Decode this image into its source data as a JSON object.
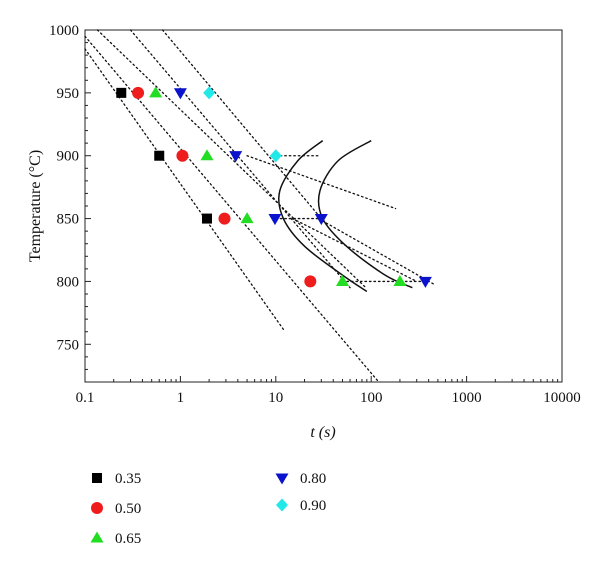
{
  "chart_data": {
    "type": "scatter",
    "title": "",
    "xlabel": "t (s)",
    "ylabel": "Temperature (°C)",
    "xscale": "log",
    "xlim": [
      0.1,
      10000
    ],
    "ylim": [
      720,
      1000
    ],
    "xticks": [
      0.1,
      1,
      10,
      100,
      1000,
      10000
    ],
    "xtick_labels": [
      "0.1",
      "1",
      "10",
      "100",
      "1000",
      "10000"
    ],
    "yticks": [
      750,
      800,
      850,
      900,
      950,
      1000
    ],
    "ytick_labels": [
      "750",
      "800",
      "850",
      "900",
      "950",
      "1000"
    ],
    "grid": false,
    "legend_position": "bottom",
    "series": [
      {
        "name": "0.35",
        "marker": "square",
        "color": "#000000",
        "points": [
          [
            0.24,
            950
          ],
          [
            0.6,
            900
          ],
          [
            1.9,
            850
          ]
        ]
      },
      {
        "name": "0.50",
        "marker": "circle",
        "color": "#ee1c1c",
        "points": [
          [
            0.36,
            950
          ],
          [
            1.05,
            900
          ],
          [
            2.9,
            850
          ],
          [
            23,
            800
          ]
        ]
      },
      {
        "name": "0.65",
        "marker": "triangle-up",
        "color": "#22dd22",
        "points": [
          [
            0.55,
            950
          ],
          [
            1.9,
            900
          ],
          [
            5.0,
            850
          ],
          [
            50,
            800
          ],
          [
            200,
            800
          ]
        ]
      },
      {
        "name": "0.80",
        "marker": "triangle-down",
        "color": "#0b14cc",
        "points": [
          [
            1.0,
            950
          ],
          [
            3.8,
            900
          ],
          [
            9.8,
            850
          ],
          [
            30,
            850
          ],
          [
            370,
            800
          ]
        ]
      },
      {
        "name": "0.90",
        "marker": "diamond",
        "color": "#22e8e8",
        "points": [
          [
            2.0,
            950
          ],
          [
            10,
            900
          ]
        ]
      }
    ],
    "dotted_lines": [
      [
        [
          0.1,
          985
        ],
        [
          12.5,
          760
        ]
      ],
      [
        [
          0.1,
          995
        ],
        [
          120,
          720
        ]
      ],
      [
        [
          0.135,
          1000
        ],
        [
          88,
          795
        ]
      ],
      [
        [
          0.3,
          1000
        ],
        [
          60,
          795
        ]
      ],
      [
        [
          0.65,
          1000
        ],
        [
          30,
          850
        ]
      ],
      [
        [
          5.0,
          900
        ],
        [
          180,
          858
        ]
      ],
      [
        [
          28,
          850
        ],
        [
          450,
          798
        ]
      ],
      [
        [
          15,
          850
        ],
        [
          300,
          800
        ]
      ],
      [
        [
          10,
          900
        ],
        [
          28,
          900
        ]
      ],
      [
        [
          10,
          850
        ],
        [
          30,
          850
        ]
      ],
      [
        [
          50,
          800
        ],
        [
          390,
          800
        ]
      ]
    ],
    "solid_curves": [
      [
        [
          31,
          912
        ],
        [
          17,
          896
        ],
        [
          11,
          872
        ],
        [
          12,
          850
        ],
        [
          20,
          828
        ],
        [
          50,
          805
        ],
        [
          90,
          792
        ]
      ],
      [
        [
          100,
          912
        ],
        [
          45,
          896
        ],
        [
          29,
          872
        ],
        [
          31,
          850
        ],
        [
          55,
          828
        ],
        [
          140,
          805
        ],
        [
          270,
          795
        ]
      ]
    ]
  }
}
